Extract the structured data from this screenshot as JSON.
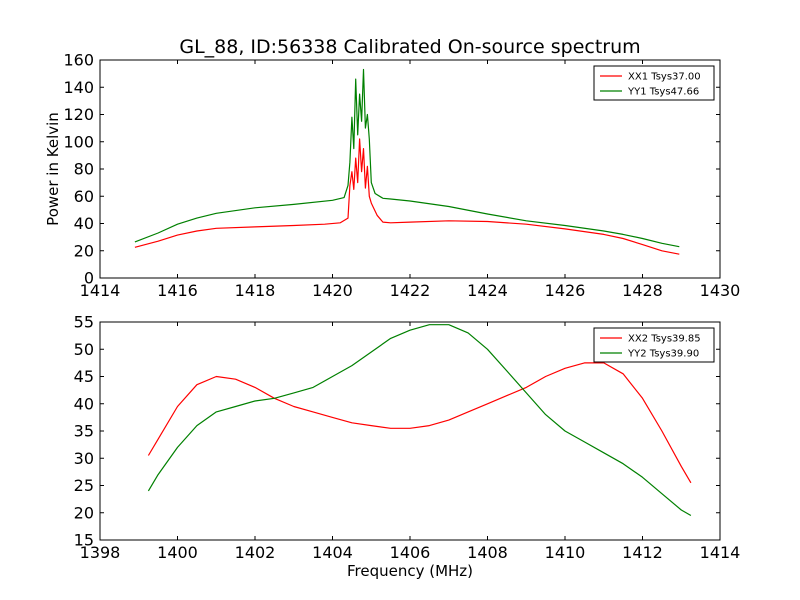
{
  "chart_data": [
    {
      "type": "line",
      "title": "GL_88, ID:56338 Calibrated On-source spectrum",
      "xlabel": "",
      "ylabel": "Power in Kelvin",
      "xlim": [
        1414,
        1430
      ],
      "ylim": [
        0,
        160
      ],
      "xticks": [
        1414,
        1416,
        1418,
        1420,
        1422,
        1424,
        1426,
        1428,
        1430
      ],
      "yticks": [
        0,
        20,
        40,
        60,
        80,
        100,
        120,
        140,
        160
      ],
      "grid": false,
      "legend_position": "top-right",
      "series": [
        {
          "name": "XX1 Tsys37.00",
          "color": "#ff0000",
          "x": [
            1414.9,
            1415.5,
            1416,
            1416.5,
            1417,
            1418,
            1419,
            1419.8,
            1420.2,
            1420.4,
            1420.45,
            1420.5,
            1420.55,
            1420.6,
            1420.65,
            1420.7,
            1420.75,
            1420.8,
            1420.85,
            1420.9,
            1420.95,
            1421.0,
            1421.05,
            1421.15,
            1421.3,
            1421.5,
            1422,
            1423,
            1424,
            1425,
            1426,
            1427,
            1427.5,
            1428,
            1428.5,
            1428.95
          ],
          "y": [
            22.5,
            27,
            31.5,
            34.5,
            36.5,
            37.5,
            38.5,
            39.5,
            40.5,
            44,
            68,
            78,
            65,
            88,
            70,
            102,
            78,
            95,
            66,
            82,
            60,
            55,
            52,
            46,
            41,
            40.5,
            41,
            42,
            41.5,
            39.5,
            36,
            32,
            29,
            24.5,
            20,
            17.5
          ]
        },
        {
          "name": "YY1 Tsys47.66",
          "color": "#008000",
          "x": [
            1414.9,
            1415.5,
            1416,
            1416.5,
            1417,
            1418,
            1419,
            1420,
            1420.3,
            1420.4,
            1420.45,
            1420.5,
            1420.55,
            1420.6,
            1420.65,
            1420.7,
            1420.75,
            1420.8,
            1420.85,
            1420.9,
            1420.95,
            1421.0,
            1421.1,
            1421.3,
            1421.5,
            1422,
            1423,
            1424,
            1425,
            1426,
            1427,
            1427.5,
            1428,
            1428.5,
            1428.95
          ],
          "y": [
            26.5,
            33,
            39.5,
            44,
            47.5,
            51.5,
            54,
            57,
            59,
            68,
            85,
            118,
            95,
            146,
            105,
            135,
            115,
            153,
            110,
            120,
            102,
            70,
            62,
            58.5,
            58,
            56.5,
            52.5,
            47,
            42,
            38.5,
            34.5,
            32,
            29,
            25.5,
            23
          ]
        }
      ]
    },
    {
      "type": "line",
      "title": "",
      "xlabel": "Frequency (MHz)",
      "ylabel": "",
      "xlim": [
        1398,
        1414
      ],
      "ylim": [
        15,
        55
      ],
      "xticks": [
        1398,
        1400,
        1402,
        1404,
        1406,
        1408,
        1410,
        1412,
        1414
      ],
      "yticks": [
        15,
        20,
        25,
        30,
        35,
        40,
        45,
        50,
        55
      ],
      "grid": false,
      "legend_position": "top-right",
      "series": [
        {
          "name": "XX2 Tsys39.85",
          "color": "#ff0000",
          "x": [
            1399.25,
            1399.5,
            1400,
            1400.5,
            1401,
            1401.5,
            1402,
            1402.5,
            1403,
            1403.5,
            1404,
            1404.5,
            1405,
            1405.5,
            1406,
            1406.5,
            1407,
            1407.5,
            1408,
            1408.5,
            1409,
            1409.5,
            1410,
            1410.5,
            1411,
            1411.5,
            1412,
            1412.5,
            1413,
            1413.25
          ],
          "y": [
            30.5,
            33.5,
            39.5,
            43.5,
            45,
            44.5,
            43,
            41,
            39.5,
            38.5,
            37.5,
            36.5,
            36,
            35.5,
            35.5,
            36,
            37,
            38.5,
            40,
            41.5,
            43,
            45,
            46.5,
            47.5,
            47.5,
            45.5,
            41,
            35,
            28.5,
            25.5
          ]
        },
        {
          "name": "YY2 Tsys39.90",
          "color": "#008000",
          "x": [
            1399.25,
            1399.5,
            1400,
            1400.5,
            1401,
            1401.5,
            1402,
            1402.5,
            1403,
            1403.5,
            1404,
            1404.5,
            1405,
            1405.5,
            1406,
            1406.5,
            1407,
            1407.5,
            1408,
            1408.5,
            1409,
            1409.5,
            1410,
            1410.5,
            1411,
            1411.5,
            1412,
            1412.5,
            1413,
            1413.25
          ],
          "y": [
            24,
            27,
            32,
            36,
            38.5,
            39.5,
            40.5,
            41,
            42,
            43,
            45,
            47,
            49.5,
            52,
            53.5,
            54.5,
            54.5,
            53,
            50,
            46,
            42,
            38,
            35,
            33,
            31,
            29,
            26.5,
            23.5,
            20.5,
            19.5
          ]
        }
      ]
    }
  ]
}
